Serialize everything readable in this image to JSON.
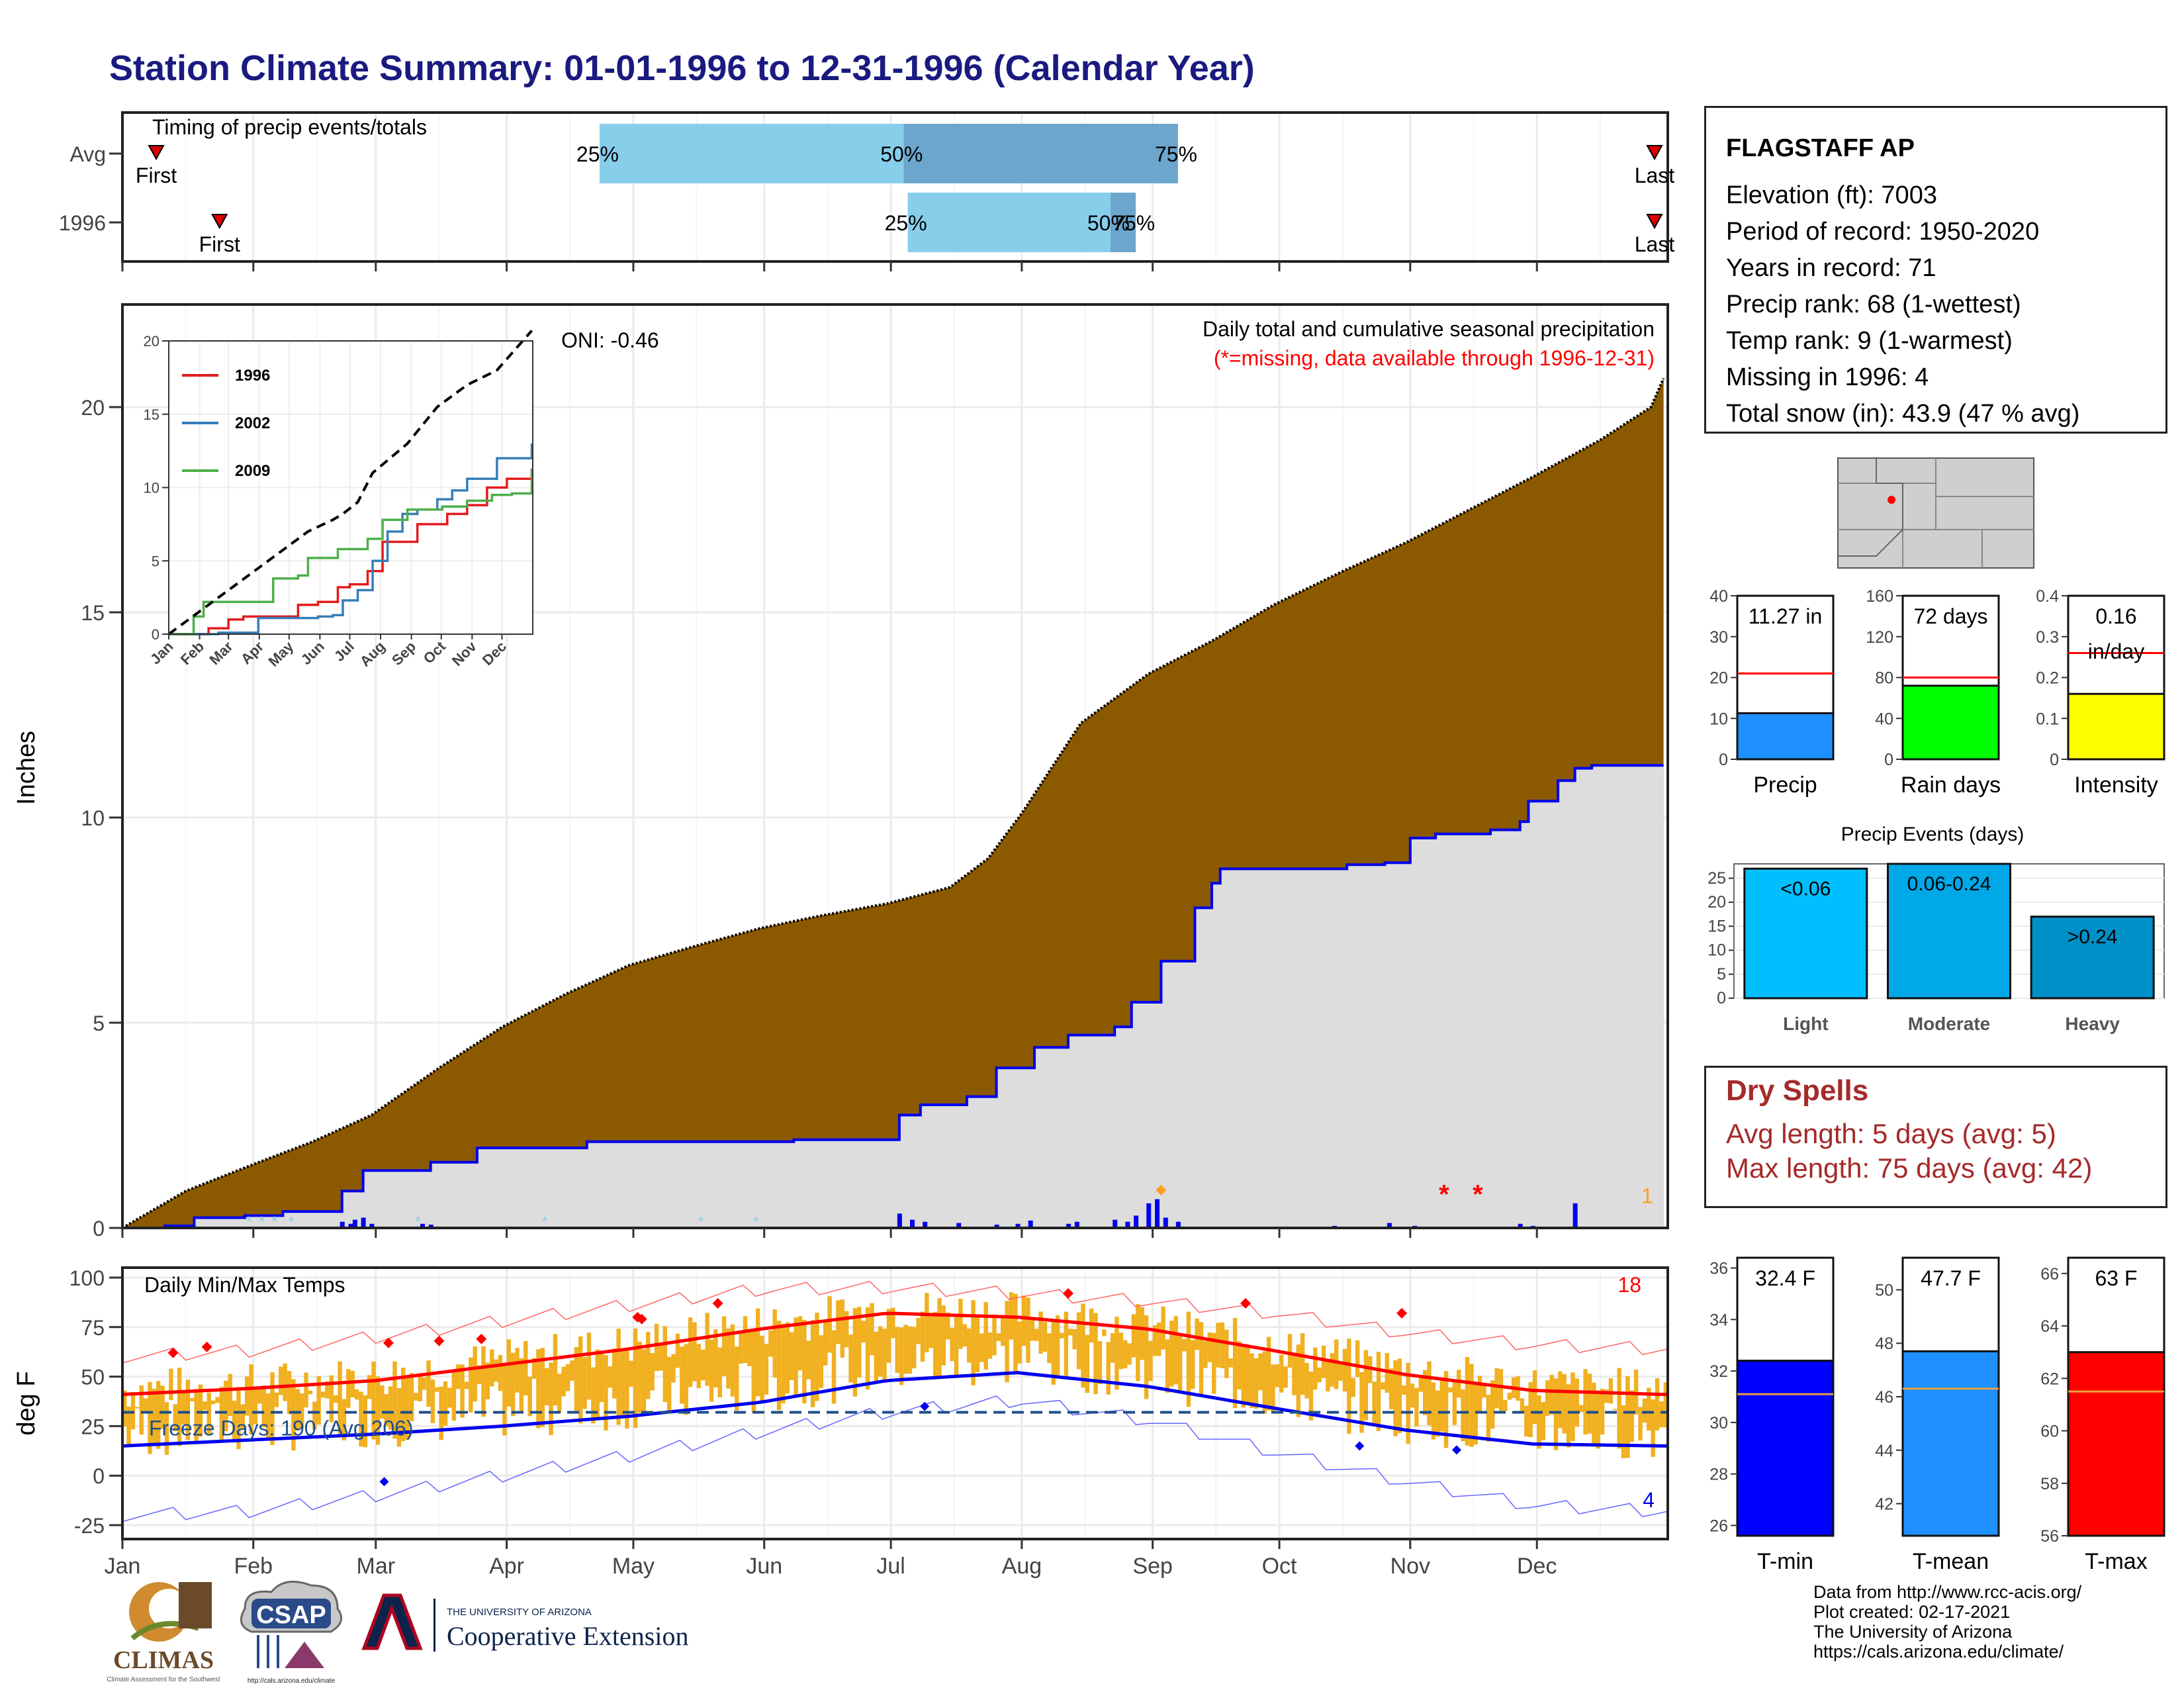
{
  "page": {
    "title": "Station Climate Summary: 01-01-1996 to 12-31-1996 (Calendar Year)"
  },
  "colors": {
    "title": "#1a1a80",
    "brown": "#8b5a00",
    "gray_fill": "#dddddd",
    "blue": "#0000ff",
    "red": "#ff0000",
    "orange_bars": "#f0b020",
    "light_blue": "#87ceeb",
    "mid_blue": "#6ca6cd"
  },
  "months": [
    "Jan",
    "Feb",
    "Mar",
    "Apr",
    "May",
    "Jun",
    "Jul",
    "Aug",
    "Sep",
    "Oct",
    "Nov",
    "Dec"
  ],
  "timing": {
    "label": "Timing of precip events/totals",
    "rows": [
      {
        "name": "Avg",
        "first_doy": 8,
        "last_doy": 365,
        "p25_doy": 113,
        "p50_doy": 185,
        "p75_doy": 250,
        "first_label": "First",
        "last_label": "Last",
        "p25_label": "25%",
        "p50_label": "50%",
        "p75_label": "75%"
      },
      {
        "name": "1996",
        "first_doy": 23,
        "last_doy": 367,
        "p25_doy": 186,
        "p50_doy": 234,
        "p75_doy": 240,
        "first_label": "First",
        "last_label": "Last",
        "p25_label": "25%",
        "p50_label": "50%",
        "p75_label": "75%"
      }
    ]
  },
  "chart_data": [
    {
      "id": "precip_main",
      "type": "area",
      "title": "Daily total and cumulative seasonal precipitation",
      "subtitle": "(*=missing, data available through 1996-12-31)",
      "ylabel": "Inches",
      "oni_label": "ONI: -0.46",
      "ylim": [
        0,
        22.5
      ],
      "yticks": [
        0,
        5,
        10,
        15,
        20
      ],
      "avg_cumulative": [
        [
          0,
          0
        ],
        [
          15,
          0.9
        ],
        [
          31,
          1.55
        ],
        [
          45,
          2.1
        ],
        [
          59,
          2.75
        ],
        [
          75,
          3.9
        ],
        [
          90,
          4.9
        ],
        [
          105,
          5.7
        ],
        [
          120,
          6.4
        ],
        [
          135,
          6.85
        ],
        [
          151,
          7.3
        ],
        [
          165,
          7.6
        ],
        [
          181,
          7.9
        ],
        [
          196,
          8.3
        ],
        [
          205,
          9.0
        ],
        [
          213,
          10.1
        ],
        [
          220,
          11.2
        ],
        [
          227,
          12.3
        ],
        [
          235,
          12.9
        ],
        [
          243,
          13.5
        ],
        [
          258,
          14.3
        ],
        [
          273,
          15.2
        ],
        [
          289,
          16.0
        ],
        [
          304,
          16.7
        ],
        [
          319,
          17.5
        ],
        [
          334,
          18.3
        ],
        [
          350,
          19.2
        ],
        [
          362,
          20.0
        ],
        [
          365,
          20.7
        ]
      ],
      "cum_1996": [
        [
          0,
          0
        ],
        [
          10,
          0.05
        ],
        [
          17,
          0.25
        ],
        [
          29,
          0.3
        ],
        [
          38,
          0.4
        ],
        [
          45,
          0.4
        ],
        [
          52,
          0.9
        ],
        [
          57,
          1.4
        ],
        [
          73,
          1.6
        ],
        [
          84,
          1.95
        ],
        [
          110,
          2.1
        ],
        [
          159,
          2.15
        ],
        [
          181,
          2.15
        ],
        [
          184,
          2.75
        ],
        [
          189,
          3.0
        ],
        [
          200,
          3.2
        ],
        [
          207,
          3.9
        ],
        [
          216,
          4.4
        ],
        [
          224,
          4.7
        ],
        [
          235,
          4.9
        ],
        [
          239,
          5.5
        ],
        [
          246,
          6.5
        ],
        [
          254,
          7.8
        ],
        [
          258,
          8.4
        ],
        [
          260,
          8.75
        ],
        [
          287,
          8.75
        ],
        [
          290,
          8.85
        ],
        [
          299,
          8.9
        ],
        [
          305,
          9.5
        ],
        [
          311,
          9.6
        ],
        [
          324,
          9.7
        ],
        [
          331,
          9.9
        ],
        [
          333,
          10.4
        ],
        [
          335,
          10.4
        ],
        [
          340,
          10.9
        ],
        [
          344,
          11.2
        ],
        [
          348,
          11.27
        ],
        [
          365,
          11.27
        ]
      ],
      "daily_bars_1996": [
        [
          52,
          0.15
        ],
        [
          54,
          0.1
        ],
        [
          55,
          0.2
        ],
        [
          57,
          0.25
        ],
        [
          59,
          0.1
        ],
        [
          71,
          0.1
        ],
        [
          73,
          0.08
        ],
        [
          184,
          0.35
        ],
        [
          187,
          0.2
        ],
        [
          190,
          0.15
        ],
        [
          198,
          0.12
        ],
        [
          207,
          0.08
        ],
        [
          212,
          0.1
        ],
        [
          215,
          0.18
        ],
        [
          224,
          0.1
        ],
        [
          226,
          0.15
        ],
        [
          235,
          0.2
        ],
        [
          238,
          0.15
        ],
        [
          240,
          0.3
        ],
        [
          243,
          0.6
        ],
        [
          245,
          0.7
        ],
        [
          247,
          0.25
        ],
        [
          250,
          0.15
        ],
        [
          287,
          0.05
        ],
        [
          300,
          0.12
        ],
        [
          306,
          0.05
        ],
        [
          331,
          0.1
        ],
        [
          334,
          0.05
        ],
        [
          344,
          0.6
        ]
      ],
      "missing_marks": [
        [
          313,
          "*"
        ],
        [
          321,
          "*"
        ]
      ],
      "extreme_count_label": "1",
      "inset": {
        "type": "line",
        "ylim": [
          0,
          20
        ],
        "yticks": [
          0,
          5,
          10,
          15,
          20
        ],
        "series": [
          {
            "name": "1996",
            "color": "#e41a1c",
            "values": [
              [
                0,
                0
              ],
              [
                40,
                0.4
              ],
              [
                60,
                1.0
              ],
              [
                75,
                1.2
              ],
              [
                120,
                1.2
              ],
              [
                130,
                2.0
              ],
              [
                150,
                2.2
              ],
              [
                170,
                3.2
              ],
              [
                182,
                3.4
              ],
              [
                200,
                4.3
              ],
              [
                215,
                6.3
              ],
              [
                250,
                7.5
              ],
              [
                280,
                8.2
              ],
              [
                300,
                8.8
              ],
              [
                320,
                10.0
              ],
              [
                340,
                10.6
              ],
              [
                365,
                11.3
              ]
            ]
          },
          {
            "name": "2002",
            "color": "#377eb8",
            "values": [
              [
                0,
                0
              ],
              [
                50,
                0.1
              ],
              [
                90,
                1.1
              ],
              [
                150,
                1.2
              ],
              [
                165,
                1.3
              ],
              [
                175,
                2.3
              ],
              [
                190,
                3.0
              ],
              [
                205,
                5.0
              ],
              [
                220,
                7.0
              ],
              [
                235,
                8.2
              ],
              [
                250,
                8.5
              ],
              [
                270,
                9.2
              ],
              [
                285,
                9.8
              ],
              [
                300,
                10.6
              ],
              [
                330,
                12.0
              ],
              [
                365,
                13.0
              ]
            ]
          },
          {
            "name": "2009",
            "color": "#4daf4a",
            "values": [
              [
                0,
                0
              ],
              [
                25,
                1.2
              ],
              [
                35,
                2.2
              ],
              [
                100,
                2.2
              ],
              [
                105,
                3.8
              ],
              [
                130,
                4.0
              ],
              [
                140,
                5.2
              ],
              [
                170,
                5.8
              ],
              [
                200,
                6.5
              ],
              [
                215,
                7.8
              ],
              [
                240,
                8.5
              ],
              [
                275,
                8.7
              ],
              [
                300,
                9.1
              ],
              [
                325,
                9.5
              ],
              [
                345,
                9.6
              ],
              [
                365,
                11.3
              ]
            ]
          },
          {
            "name": "",
            "color": "#000000",
            "dashed": true,
            "values": [
              [
                0,
                0
              ],
              [
                20,
                1.0
              ],
              [
                40,
                2.0
              ],
              [
                60,
                3.0
              ],
              [
                80,
                4.0
              ],
              [
                110,
                5.5
              ],
              [
                140,
                7.0
              ],
              [
                165,
                7.8
              ],
              [
                175,
                8.2
              ],
              [
                190,
                9.0
              ],
              [
                205,
                11.0
              ],
              [
                240,
                13.0
              ],
              [
                270,
                15.5
              ],
              [
                300,
                17.0
              ],
              [
                330,
                18.0
              ],
              [
                365,
                20.7
              ]
            ]
          }
        ],
        "x_labels": [
          "Jan",
          "Feb",
          "Mar",
          "Apr",
          "May",
          "Jun",
          "Jul",
          "Aug",
          "Sep",
          "Oct",
          "Nov",
          "Dec"
        ]
      }
    },
    {
      "id": "temps",
      "type": "bar",
      "title": "Daily Min/Max Temps",
      "ylabel": "deg F",
      "ylim": [
        -30,
        105
      ],
      "yticks": [
        -25,
        0,
        25,
        50,
        75,
        100
      ],
      "freeze_label": "Freeze Days: 190 (Avg 206)",
      "freeze_line": 32,
      "top_count_label": "18",
      "bottom_count_label": "4",
      "normal_max": [
        [
          0,
          41
        ],
        [
          30,
          44
        ],
        [
          60,
          48
        ],
        [
          90,
          56
        ],
        [
          120,
          64
        ],
        [
          151,
          74
        ],
        [
          181,
          82
        ],
        [
          212,
          80
        ],
        [
          243,
          74
        ],
        [
          273,
          63
        ],
        [
          304,
          51
        ],
        [
          334,
          43
        ],
        [
          365,
          41
        ]
      ],
      "normal_min": [
        [
          0,
          15
        ],
        [
          30,
          18
        ],
        [
          60,
          21
        ],
        [
          90,
          25
        ],
        [
          120,
          30
        ],
        [
          151,
          37
        ],
        [
          181,
          48
        ],
        [
          212,
          52
        ],
        [
          243,
          45
        ],
        [
          273,
          34
        ],
        [
          304,
          23
        ],
        [
          334,
          16
        ],
        [
          365,
          15
        ]
      ],
      "record_max": [
        [
          0,
          60
        ],
        [
          30,
          63
        ],
        [
          60,
          70
        ],
        [
          90,
          78
        ],
        [
          120,
          86
        ],
        [
          151,
          94
        ],
        [
          181,
          95
        ],
        [
          212,
          92
        ],
        [
          243,
          88
        ],
        [
          273,
          82
        ],
        [
          304,
          72
        ],
        [
          334,
          66
        ],
        [
          365,
          64
        ]
      ],
      "record_min": [
        [
          0,
          -20
        ],
        [
          30,
          -18
        ],
        [
          60,
          -10
        ],
        [
          90,
          0
        ],
        [
          120,
          10
        ],
        [
          151,
          22
        ],
        [
          181,
          32
        ],
        [
          212,
          38
        ],
        [
          243,
          28
        ],
        [
          273,
          12
        ],
        [
          304,
          -3
        ],
        [
          334,
          -15
        ],
        [
          365,
          -18
        ]
      ]
    },
    {
      "id": "precip_gauges",
      "type": "bar",
      "gauges": [
        {
          "label": "Precip",
          "value": 11.27,
          "avg": 21,
          "value_label": "11.27 in",
          "ylim": [
            0,
            40
          ],
          "yticks": [
            0,
            10,
            20,
            30,
            40
          ],
          "color": "#1e90ff"
        },
        {
          "label": "Rain days",
          "value": 72,
          "avg": 80,
          "value_label": "72 days",
          "ylim": [
            0,
            160
          ],
          "yticks": [
            0,
            40,
            80,
            120,
            160
          ],
          "color": "#00ff00"
        },
        {
          "label": "Intensity",
          "value": 0.16,
          "avg": 0.26,
          "value_label": "0.16",
          "value_label2": "in/day",
          "ylim": [
            0,
            0.4
          ],
          "yticks": [
            0.0,
            0.1,
            0.2,
            0.3,
            0.4
          ],
          "color": "#ffff00"
        }
      ]
    },
    {
      "id": "precip_events",
      "type": "bar",
      "title": "Precip Events (days)",
      "categories": [
        "Light",
        "Moderate",
        "Heavy"
      ],
      "values": [
        27,
        28,
        17
      ],
      "bar_labels": [
        "<0.06",
        "0.06-0.24",
        ">0.24"
      ],
      "ylim": [
        0,
        28
      ],
      "yticks": [
        0,
        5,
        10,
        15,
        20,
        25
      ],
      "colors": [
        "#00bfff",
        "#00a8e8",
        "#0090c8"
      ]
    },
    {
      "id": "temp_gauges",
      "type": "bar",
      "gauges": [
        {
          "label": "T-min",
          "value": 32.4,
          "avg": 31.1,
          "value_label": "32.4 F",
          "ylim": [
            25.6,
            36.4
          ],
          "yticks": [
            26,
            28,
            30,
            32,
            34,
            36
          ],
          "color": "#0000ff"
        },
        {
          "label": "T-mean",
          "value": 47.7,
          "avg": 46.3,
          "value_label": "47.7 F",
          "ylim": [
            40.8,
            51.2
          ],
          "yticks": [
            42,
            44,
            46,
            48,
            50
          ],
          "color": "#1e90ff"
        },
        {
          "label": "T-max",
          "value": 63,
          "avg": 61.5,
          "value_label": "63 F",
          "ylim": [
            56,
            66.6
          ],
          "yticks": [
            56,
            58,
            60,
            62,
            64,
            66
          ],
          "color": "#ff0000"
        }
      ]
    }
  ],
  "station": {
    "name": "FLAGSTAFF AP",
    "lines": [
      "Elevation (ft): 7003",
      "Period of record: 1950-2020",
      "Years in record: 71",
      "Precip rank: 68 (1-wettest)",
      "Temp rank: 9 (1-warmest)",
      "Missing in 1996: 4",
      "Total snow (in): 43.9 (47 % avg)"
    ]
  },
  "dry_spells": {
    "title": "Dry Spells",
    "avg_line": "Avg length: 5 days (avg: 5)",
    "max_line": "Max length: 75 days (avg: 42)"
  },
  "credits": [
    "Data from http://www.rcc-acis.org/",
    "Plot created: 02-17-2021",
    "The University of Arizona",
    "https://cals.arizona.edu/climate/"
  ],
  "logos": {
    "climas": "CLIMAS",
    "climas_sub": "Climate Assessment for the Southwest",
    "csap": "CSAP",
    "csap_url": "http://cals.arizona.edu/climate",
    "ua_small": "THE UNIVERSITY OF ARIZONA",
    "ua_big": "Cooperative Extension"
  }
}
